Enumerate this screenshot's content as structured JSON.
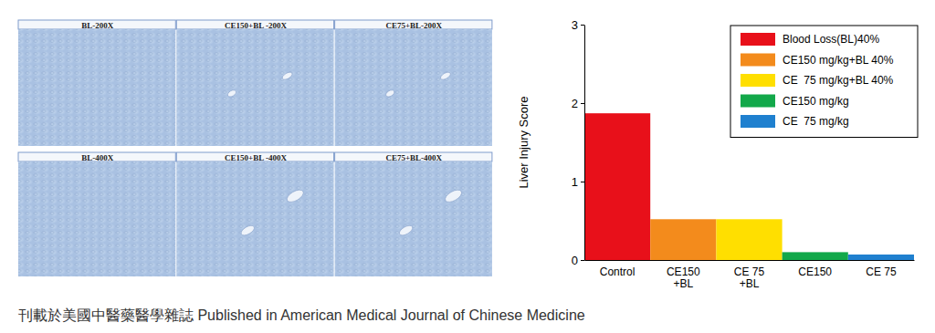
{
  "chart_data": {
    "type": "bar",
    "y_label": "Liver Injury Score",
    "categories": [
      "Control",
      "CE150\n+BL",
      "CE 75\n+BL",
      "CE150",
      "CE 75"
    ],
    "series": [
      {
        "name": "Blood Loss(BL)40%",
        "color": "#e8101a",
        "values": [
          1.87,
          null,
          null,
          null,
          null
        ]
      },
      {
        "name": "CE150 mg/kg+BL 40%",
        "color": "#f38b1c",
        "values": [
          null,
          0.52,
          null,
          null,
          null
        ]
      },
      {
        "name": "CE  75 mg/kg+BL 40%",
        "color": "#ffdf00",
        "values": [
          null,
          null,
          0.52,
          null,
          null
        ]
      },
      {
        "name": "CE150 mg/kg",
        "color": "#12a84a",
        "values": [
          null,
          null,
          null,
          0.1,
          null
        ]
      },
      {
        "name": "CE  75 mg/kg",
        "color": "#1f80cf",
        "values": [
          null,
          null,
          null,
          null,
          0.07
        ]
      }
    ],
    "ylim": [
      0,
      3
    ],
    "yticks": [
      0,
      1,
      2,
      3
    ],
    "grid": false,
    "legend": "top-right"
  },
  "micrographs": {
    "labels": [
      "BL-200X",
      "CE150+BL -200X",
      "CE75+BL-200X",
      "BL-400X",
      "CE150+BL -400X",
      "CE75+BL-400X"
    ]
  },
  "caption": "刊載於美國中醫藥醫學雜誌 Published in American Medical Journal of Chinese Medicine"
}
